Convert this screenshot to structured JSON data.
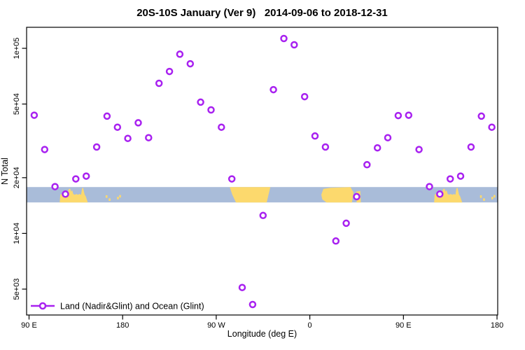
{
  "title": "20S-10S January (Ver 9)   2014-09-06 to 2018-12-31",
  "legend": {
    "label": "Land (Nadir&Glint) and Ocean (Glint)"
  },
  "colors": {
    "point": "#a821f0",
    "ocean": "#a9bcd9",
    "land": "#fcd96d",
    "axis": "#000000"
  },
  "chart_data": {
    "type": "scatter",
    "title": "20S-10S January (Ver 9)   2014-09-06 to 2018-12-31",
    "xlabel": "Longitude (deg E)",
    "ylabel": "N Total",
    "y_scale": "log",
    "xlim": [
      87.65,
      540.65
    ],
    "ylim": [
      3623,
      129900
    ],
    "grid": false,
    "legend_position": "bottom-left-inside",
    "x_ticks": [
      {
        "lon": 90,
        "label": "90 E"
      },
      {
        "lon": 180,
        "label": "180"
      },
      {
        "lon": 270,
        "label": "90 W"
      },
      {
        "lon": 360,
        "label": "0"
      },
      {
        "lon": 450,
        "label": "90 E"
      },
      {
        "lon": 540,
        "label": "180"
      }
    ],
    "y_ticks": [
      {
        "value": 5000,
        "label": "5e+03"
      },
      {
        "value": 10000,
        "label": "1e+04"
      },
      {
        "value": 20000,
        "label": "2e+04"
      },
      {
        "value": 50000,
        "label": "5e+04"
      },
      {
        "value": 100000,
        "label": "1e+05"
      }
    ],
    "series": [
      {
        "name": "Land (Nadir&Glint) and Ocean (Glint)",
        "x": [
          95,
          105,
          115,
          125,
          135,
          145,
          155,
          165,
          175,
          185,
          195,
          205,
          215,
          225,
          235,
          245,
          255,
          265,
          275,
          285,
          295,
          305,
          315,
          325,
          335,
          345,
          355,
          365,
          375,
          385,
          395,
          405,
          415,
          425,
          435,
          445,
          455,
          465,
          475,
          485,
          495,
          505,
          515,
          525,
          535
        ],
        "values": [
          43500,
          28400,
          17900,
          16300,
          19700,
          20400,
          29300,
          43000,
          37500,
          32600,
          39600,
          32900,
          64700,
          75000,
          93000,
          82500,
          51200,
          46500,
          37500,
          19700,
          5100,
          4130,
          12500,
          59800,
          113000,
          104500,
          54800,
          33600,
          29300,
          9100,
          11350,
          15800,
          23500,
          29000,
          32900,
          43300,
          43500,
          28400,
          17900,
          16300,
          19700,
          20400,
          29300,
          43000,
          37500
        ]
      }
    ],
    "map_band": {
      "description": "latitude strip map 20S-10S: ocean blue, land yellow",
      "n_top": 17800,
      "n_bottom": 14700,
      "land_patches": [
        {
          "name": "australia-pass1",
          "points": [
            [
              119.5,
              1
            ],
            [
              120,
              0.5
            ],
            [
              121,
              0.45
            ],
            [
              122,
              0.5
            ],
            [
              123,
              0.3
            ],
            [
              124,
              0.5
            ],
            [
              125.5,
              0.45
            ],
            [
              127,
              0.5
            ],
            [
              128,
              0.15
            ],
            [
              129.5,
              0.1
            ],
            [
              130.5,
              0.3
            ],
            [
              131.5,
              0.2
            ],
            [
              132.5,
              0.45
            ],
            [
              134,
              0.5
            ],
            [
              135.5,
              0.45
            ],
            [
              137,
              0.5
            ],
            [
              138.5,
              0.45
            ],
            [
              140,
              0.5
            ],
            [
              141,
              0.08
            ],
            [
              142,
              0.05
            ],
            [
              142.8,
              0.3
            ],
            [
              143.5,
              0.5
            ],
            [
              144.5,
              0.6
            ],
            [
              145.5,
              0.8
            ],
            [
              146.5,
              1
            ]
          ]
        },
        {
          "name": "south-america",
          "points": [
            [
              283,
              0
            ],
            [
              322,
              0
            ],
            [
              318.5,
              1
            ],
            [
              289,
              1
            ],
            [
              285.5,
              0.5
            ]
          ]
        },
        {
          "name": "africa",
          "points": [
            [
              371,
              0.5
            ],
            [
              373,
              0.12
            ],
            [
              380,
              0.05
            ],
            [
              399,
              0
            ],
            [
              402,
              0.35
            ],
            [
              400.5,
              1
            ],
            [
              376,
              1
            ],
            [
              372,
              0.8
            ]
          ]
        },
        {
          "name": "madagascar",
          "points": [
            [
              404.5,
              0.3
            ],
            [
              408.5,
              0.25
            ],
            [
              409,
              1
            ],
            [
              405,
              1
            ]
          ]
        },
        {
          "name": "australia-pass2",
          "points": [
            [
              479.5,
              1
            ],
            [
              480,
              0.5
            ],
            [
              481,
              0.45
            ],
            [
              482,
              0.5
            ],
            [
              483,
              0.3
            ],
            [
              484,
              0.5
            ],
            [
              485.5,
              0.45
            ],
            [
              487,
              0.5
            ],
            [
              488,
              0.15
            ],
            [
              489.5,
              0.1
            ],
            [
              490.5,
              0.3
            ],
            [
              491.5,
              0.2
            ],
            [
              492.5,
              0.45
            ],
            [
              494,
              0.5
            ],
            [
              495.5,
              0.45
            ],
            [
              497,
              0.5
            ],
            [
              498.5,
              0.45
            ],
            [
              500,
              0.5
            ],
            [
              501,
              0.08
            ],
            [
              502,
              0.05
            ],
            [
              502.8,
              0.3
            ],
            [
              503.5,
              0.5
            ],
            [
              504.5,
              0.6
            ],
            [
              505.5,
              0.8
            ],
            [
              506.5,
              1
            ]
          ]
        }
      ],
      "islands": [
        {
          "lon": 164.5,
          "frac": 0.62
        },
        {
          "lon": 167.5,
          "frac": 0.82
        },
        {
          "lon": 175.5,
          "frac": 0.72
        },
        {
          "lon": 177.5,
          "frac": 0.6
        },
        {
          "lon": 524.5,
          "frac": 0.62
        },
        {
          "lon": 527.5,
          "frac": 0.82
        },
        {
          "lon": 535.5,
          "frac": 0.72
        },
        {
          "lon": 537.5,
          "frac": 0.6
        }
      ]
    }
  }
}
